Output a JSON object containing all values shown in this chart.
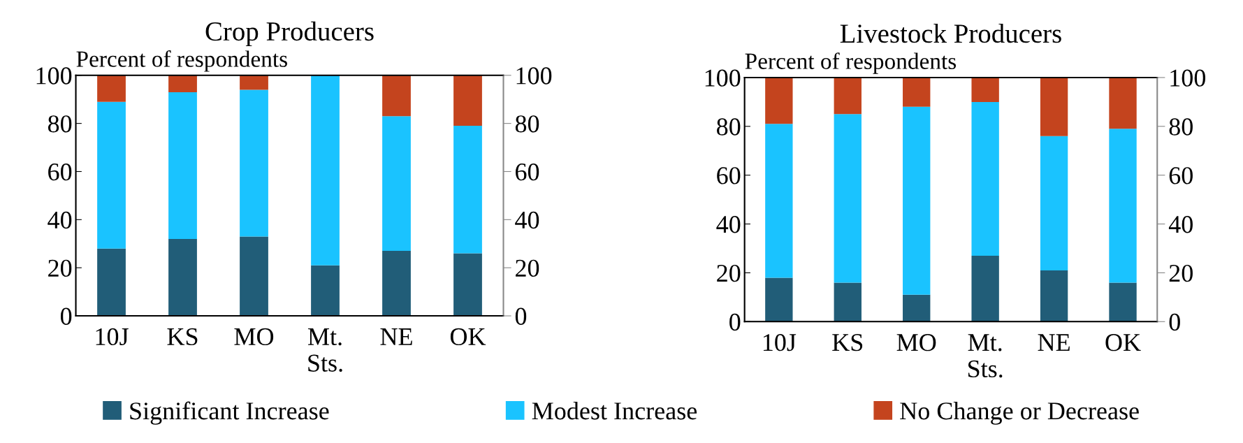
{
  "chart_data": [
    {
      "type": "bar",
      "title": "Crop Producers",
      "ylabel": "Percent of respondents",
      "categories": [
        "10J",
        "KS",
        "MO",
        "Mt.\nSts.",
        "NE",
        "OK"
      ],
      "stacked": true,
      "series": [
        {
          "name": "Significant Increase",
          "color": "#215d78",
          "values": [
            28,
            32,
            33,
            21,
            27,
            26
          ]
        },
        {
          "name": "Modest Increase",
          "color": "#1ac3ff",
          "values": [
            61,
            61,
            61,
            79,
            56,
            53
          ]
        },
        {
          "name": "No Change or Decrease",
          "color": "#c4441e",
          "values": [
            11,
            7,
            6,
            0,
            17,
            21
          ]
        }
      ],
      "ylim": [
        0,
        100
      ],
      "yticks": [
        0,
        20,
        40,
        60,
        80,
        100
      ],
      "y2lim": [
        0,
        100
      ],
      "y2ticks": [
        0,
        20,
        40,
        60,
        80,
        100
      ],
      "grid": false,
      "legend": "bottom"
    },
    {
      "type": "bar",
      "title": "Livestock Producers",
      "ylabel": "Percent of respondents",
      "categories": [
        "10J",
        "KS",
        "MO",
        "Mt.\nSts.",
        "NE",
        "OK"
      ],
      "stacked": true,
      "series": [
        {
          "color": "#215d78",
          "values": [
            18,
            16,
            11,
            27,
            21,
            16
          ]
        },
        {
          "color": "#1ac3ff",
          "values": [
            63,
            69,
            77,
            63,
            55,
            63
          ]
        },
        {
          "color": "#c4441e",
          "values": [
            19,
            15,
            12,
            10,
            24,
            21
          ]
        }
      ],
      "ylim": [
        0,
        100
      ],
      "yticks": [
        0,
        20,
        40,
        60,
        80,
        100
      ],
      "y2lim": [
        0,
        100
      ],
      "y2ticks": [
        0,
        20,
        40,
        60,
        80,
        100
      ],
      "grid": false,
      "legend": false
    }
  ]
}
